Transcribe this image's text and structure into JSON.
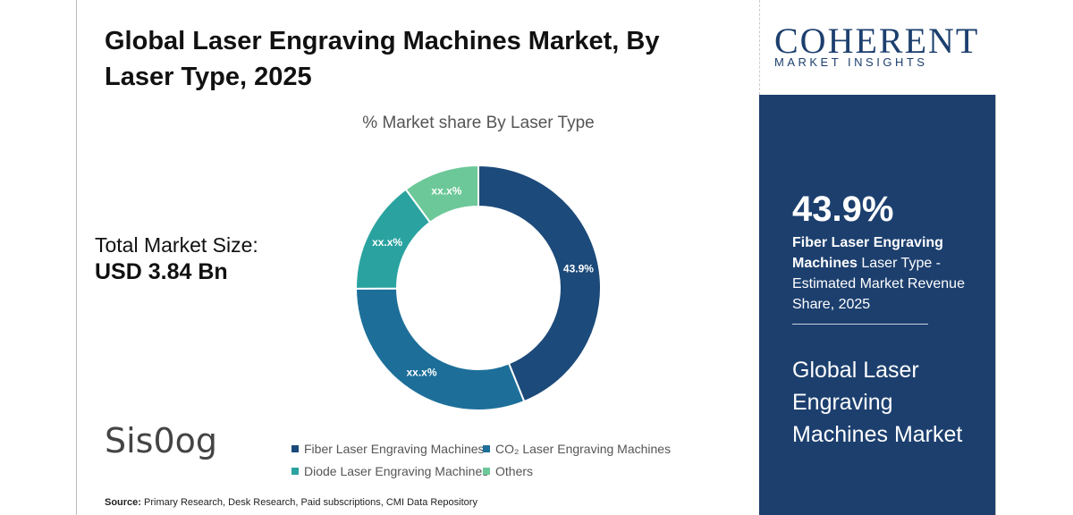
{
  "title": "Global Laser Engraving Machines Market, By Laser Type, 2025",
  "subtitle": "% Market share By Laser Type",
  "market_size": {
    "label": "Total Market Size:",
    "value": "USD 3.84 Bn"
  },
  "source": {
    "label": "Source:",
    "text": "Primary Research, Desk Research, Paid subscriptions, CMI Data Repository"
  },
  "watermark": "Sis0og",
  "logo": {
    "main": "COHERENT",
    "sub": "MARKET INSIGHTS"
  },
  "side_panel": {
    "stat": "43.9%",
    "desc_bold": "Fiber Laser Engraving Machines",
    "desc_rest": " Laser Type - Estimated Market Revenue Share, 2025",
    "market_title": "Global Laser Engraving Machines Market"
  },
  "colors": {
    "fiber": "#1c4a7a",
    "co2": "#1d6f9a",
    "diode": "#2aa3a0",
    "others": "#6cc898",
    "panel": "#1c3f6e"
  },
  "chart_data": {
    "type": "pie",
    "donut": true,
    "title": "% Market share By Laser Type",
    "categories": [
      "Fiber Laser Engraving Machines",
      "CO₂ Laser Engraving Machines",
      "Diode Laser Engraving Machines",
      "Others"
    ],
    "values": [
      43.9,
      31,
      15,
      10.1
    ],
    "labels": [
      "43.9%",
      "xx.x%",
      "xx.x%",
      "xx.x%"
    ],
    "colors": [
      "#1c4a7a",
      "#1d6f9a",
      "#2aa3a0",
      "#6cc898"
    ],
    "legend_position": "bottom"
  }
}
